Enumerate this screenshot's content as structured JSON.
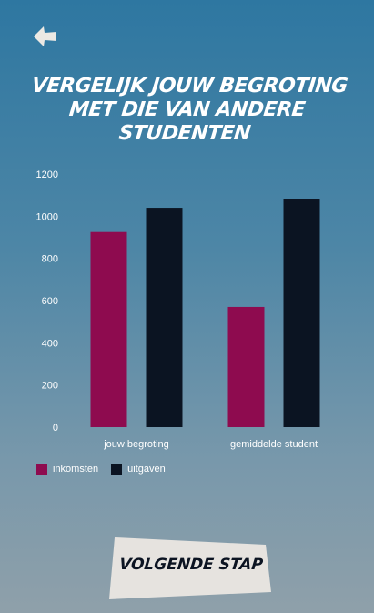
{
  "header": {
    "back_icon": "arrow-left-icon",
    "title": "VERGELIJK JOUW BEGROTING MET DIE VAN ANDERE STUDENTEN"
  },
  "chart_data": {
    "type": "bar",
    "categories": [
      "jouw begroting",
      "gemiddelde student"
    ],
    "series": [
      {
        "name": "inkomsten",
        "values": [
          925,
          570
        ],
        "color": "#8e0b4f"
      },
      {
        "name": "uitgaven",
        "values": [
          1040,
          1080
        ],
        "color": "#0b1422"
      }
    ],
    "ylim": [
      0,
      1200
    ],
    "yticks": [
      "0",
      "200",
      "400",
      "600",
      "800",
      "1000",
      "1200"
    ],
    "grid": false,
    "legend_position": "bottom-left"
  },
  "legend": [
    {
      "label": "inkomsten",
      "color": "#8e0b4f"
    },
    {
      "label": "uitgaven",
      "color": "#0b1422"
    }
  ],
  "footer": {
    "next_label": "VOLGENDE STAP",
    "button_color": "#e6e3df"
  }
}
